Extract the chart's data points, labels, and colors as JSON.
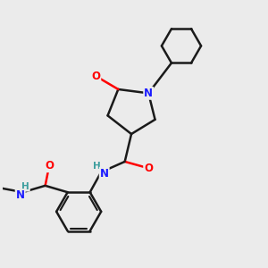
{
  "bg_color": "#ebebeb",
  "atom_color_N": "#1a1aff",
  "atom_color_O": "#ff0000",
  "atom_color_H": "#3d9e9e",
  "bond_color": "#1a1a1a",
  "bond_width": 1.8,
  "figsize": [
    3.0,
    3.0
  ],
  "dpi": 100,
  "xlim": [
    0,
    10
  ],
  "ylim": [
    0,
    10
  ]
}
